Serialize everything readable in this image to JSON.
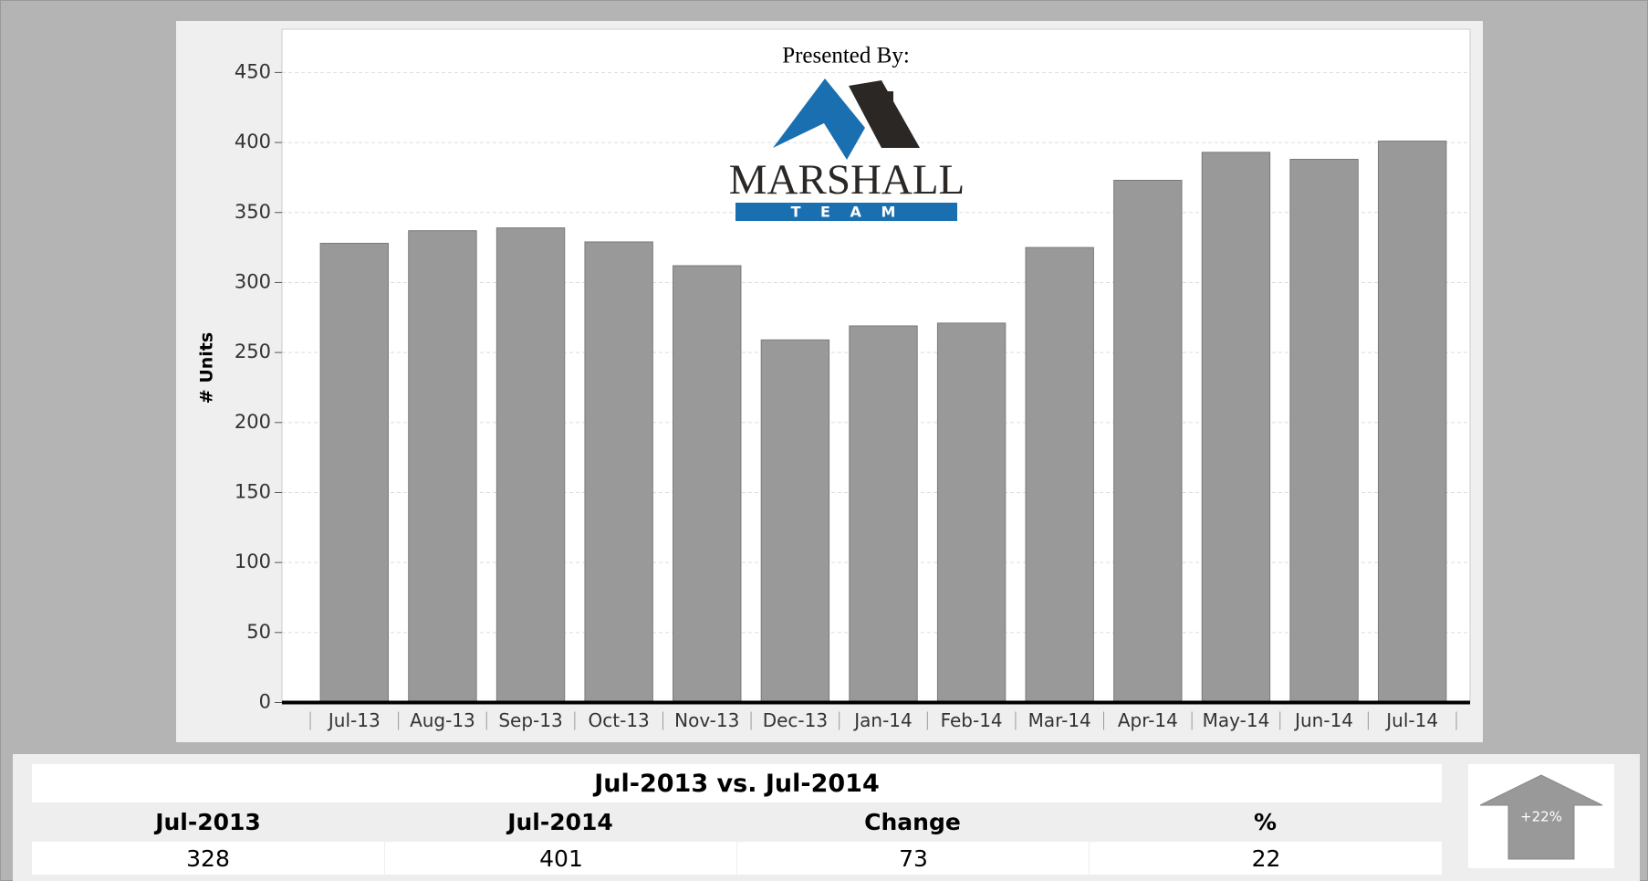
{
  "chart_data": {
    "type": "bar",
    "ylabel": "# Units",
    "categories": [
      "Jul-13",
      "Aug-13",
      "Sep-13",
      "Oct-13",
      "Nov-13",
      "Dec-13",
      "Jan-14",
      "Feb-14",
      "Mar-14",
      "Apr-14",
      "May-14",
      "Jun-14",
      "Jul-14"
    ],
    "values": [
      328,
      337,
      339,
      329,
      312,
      259,
      269,
      271,
      325,
      373,
      393,
      388,
      401
    ],
    "color": "#999999",
    "ylim": [
      0,
      480
    ],
    "yticks": [
      0,
      50,
      100,
      150,
      200,
      250,
      300,
      350,
      400,
      450
    ],
    "grid": true
  },
  "logo": {
    "presented_by": "Presented By:",
    "name": "MARSHALL",
    "sub": "T E A M"
  },
  "summary": {
    "title": "Jul-2013 vs. Jul-2014",
    "headers": [
      "Jul-2013",
      "Jul-2014",
      "Change",
      "%"
    ],
    "values": [
      328,
      401,
      73,
      22
    ],
    "indicator": "+22%"
  }
}
